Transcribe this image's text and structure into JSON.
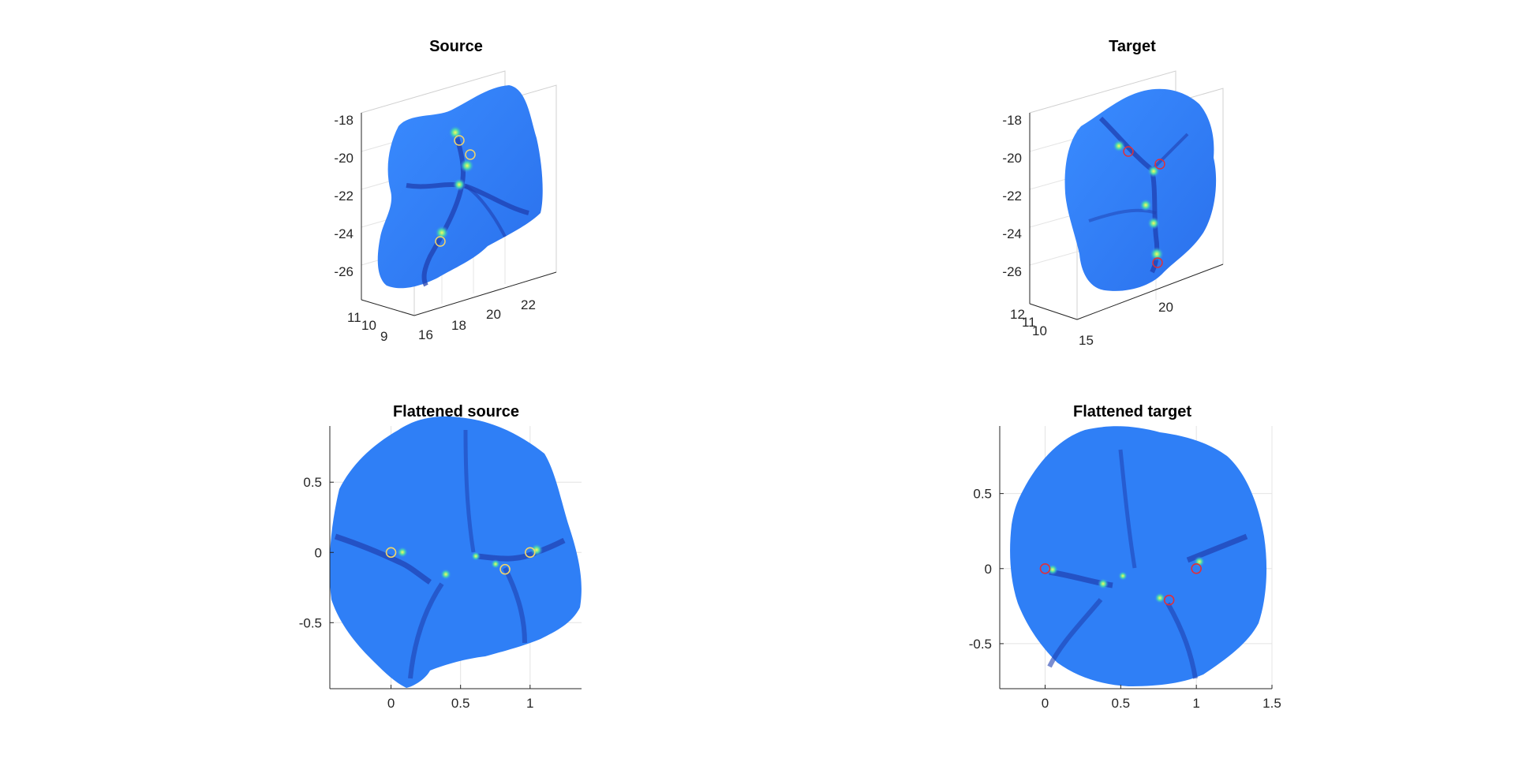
{
  "chart_data": [
    {
      "type": "surface-3d",
      "title": "Source",
      "z_ticks": [
        "-18",
        "-20",
        "-22",
        "-24",
        "-26"
      ],
      "y_ticks": [
        "11",
        "10",
        "9"
      ],
      "x_ticks": [
        "16",
        "18",
        "20",
        "22"
      ],
      "landmark_color": "#f2d56a",
      "surface_color": "#2f7ff6"
    },
    {
      "type": "surface-3d",
      "title": "Target",
      "z_ticks": [
        "-18",
        "-20",
        "-22",
        "-24",
        "-26"
      ],
      "y_ticks": [
        "12",
        "11",
        "10"
      ],
      "x_ticks": [
        "15",
        "20"
      ],
      "landmark_color": "#e0303a",
      "surface_color": "#2f7ff6"
    },
    {
      "type": "surface-2d",
      "title": "Flattened source",
      "x_ticks": [
        "0",
        "0.5",
        "1"
      ],
      "y_ticks": [
        "0.5",
        "0",
        "-0.5"
      ],
      "xlim": [
        -0.44,
        1.37
      ],
      "ylim": [
        -0.97,
        0.9
      ],
      "grid": true,
      "landmark_color": "#f2d56a",
      "landmarks": [
        {
          "x": 0,
          "y": 0
        },
        {
          "x": 0.82,
          "y": -0.12
        },
        {
          "x": 1.0,
          "y": 0
        }
      ]
    },
    {
      "type": "surface-2d",
      "title": "Flattened target",
      "x_ticks": [
        "0",
        "0.5",
        "1",
        "1.5"
      ],
      "y_ticks": [
        "0.5",
        "0",
        "-0.5"
      ],
      "xlim": [
        -0.3,
        1.5
      ],
      "ylim": [
        -0.8,
        0.95
      ],
      "grid": true,
      "landmark_color": "#e0303a",
      "landmarks": [
        {
          "x": 0,
          "y": 0
        },
        {
          "x": 0.82,
          "y": -0.21
        },
        {
          "x": 1.0,
          "y": 0
        }
      ]
    }
  ]
}
